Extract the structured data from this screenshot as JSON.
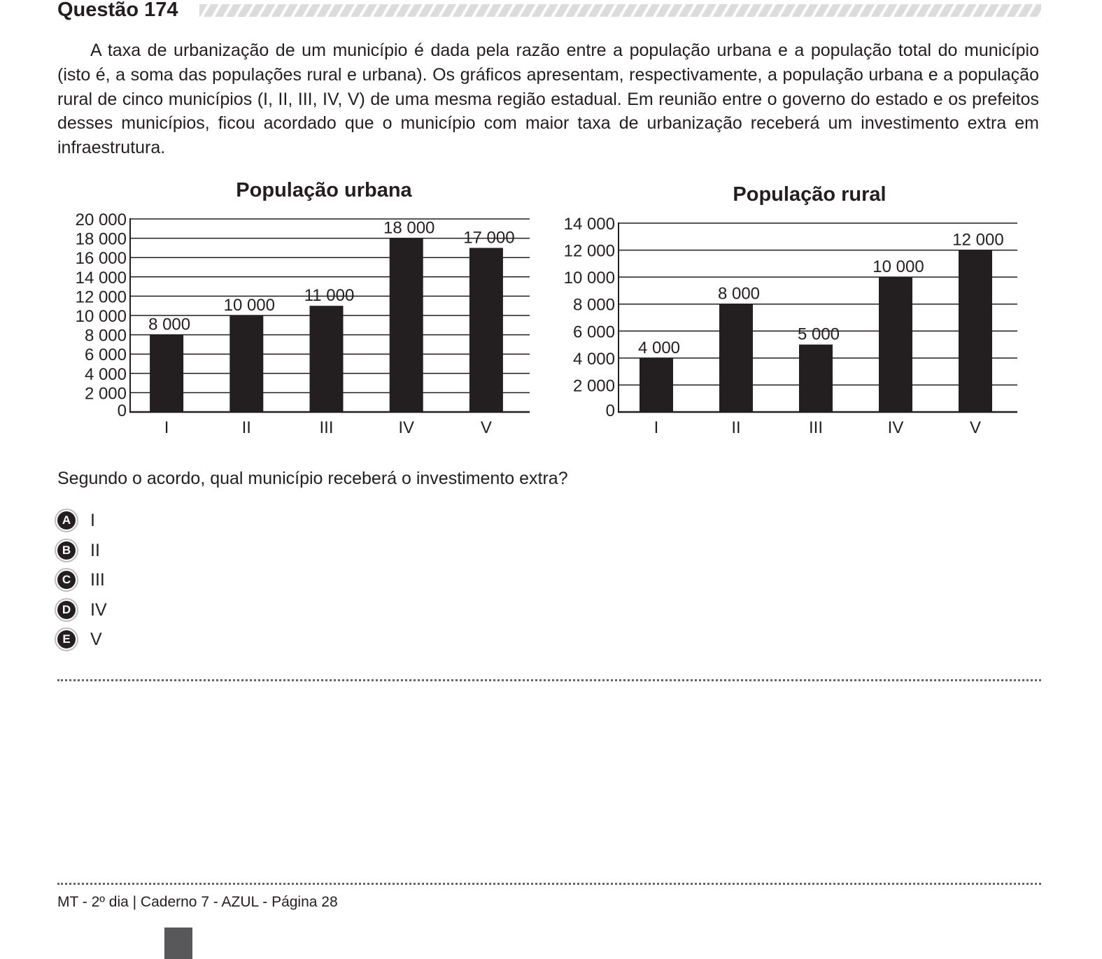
{
  "question": {
    "title": "Questão 174",
    "stem": "A taxa de urbanização de um município é dada pela razão entre a população urbana e a população total do município (isto é, a soma das populações rural e urbana). Os gráficos apresentam, respectivamente, a população urbana e a população rural de cinco municípios (I, II, III, IV, V) de uma mesma região estadual. Em reunião entre o governo do estado e os prefeitos desses municípios, ficou acordado que o município com maior taxa de urbanização receberá um investimento extra em infraestrutura.",
    "prompt": "Segundo o acordo, qual município receberá o investimento extra?",
    "options": [
      {
        "letter": "A",
        "text": "I"
      },
      {
        "letter": "B",
        "text": "II"
      },
      {
        "letter": "C",
        "text": "III"
      },
      {
        "letter": "D",
        "text": "IV"
      },
      {
        "letter": "E",
        "text": "V"
      }
    ]
  },
  "chart_data": [
    {
      "type": "bar",
      "title": "População urbana",
      "categories": [
        "I",
        "II",
        "III",
        "IV",
        "V"
      ],
      "values": [
        8000,
        10000,
        11000,
        18000,
        17000
      ],
      "value_labels": [
        "8 000",
        "10 000",
        "11 000",
        "18 000",
        "17 000"
      ],
      "yticks": [
        0,
        2000,
        4000,
        6000,
        8000,
        10000,
        12000,
        14000,
        16000,
        18000,
        20000
      ],
      "ytick_labels": [
        "0",
        "2 000",
        "4 000",
        "6 000",
        "8 000",
        "10 000",
        "12 000",
        "14 000",
        "16 000",
        "18 000",
        "20 000"
      ],
      "ylim": [
        0,
        20000
      ],
      "grid": true,
      "bar_color": "#231f20"
    },
    {
      "type": "bar",
      "title": "População rural",
      "categories": [
        "I",
        "II",
        "III",
        "IV",
        "V"
      ],
      "values": [
        4000,
        8000,
        5000,
        10000,
        12000
      ],
      "value_labels": [
        "4 000",
        "8 000",
        "5 000",
        "10 000",
        "12 000"
      ],
      "yticks": [
        0,
        2000,
        4000,
        6000,
        8000,
        10000,
        12000,
        14000
      ],
      "ytick_labels": [
        "0",
        "2 000",
        "4 000",
        "6 000",
        "8 000",
        "10 000",
        "12 000",
        "14 000"
      ],
      "ylim": [
        0,
        14000
      ],
      "grid": true,
      "bar_color": "#231f20"
    }
  ],
  "footer": {
    "text": "MT - 2º dia | Caderno 7 - AZUL - Página 28"
  }
}
